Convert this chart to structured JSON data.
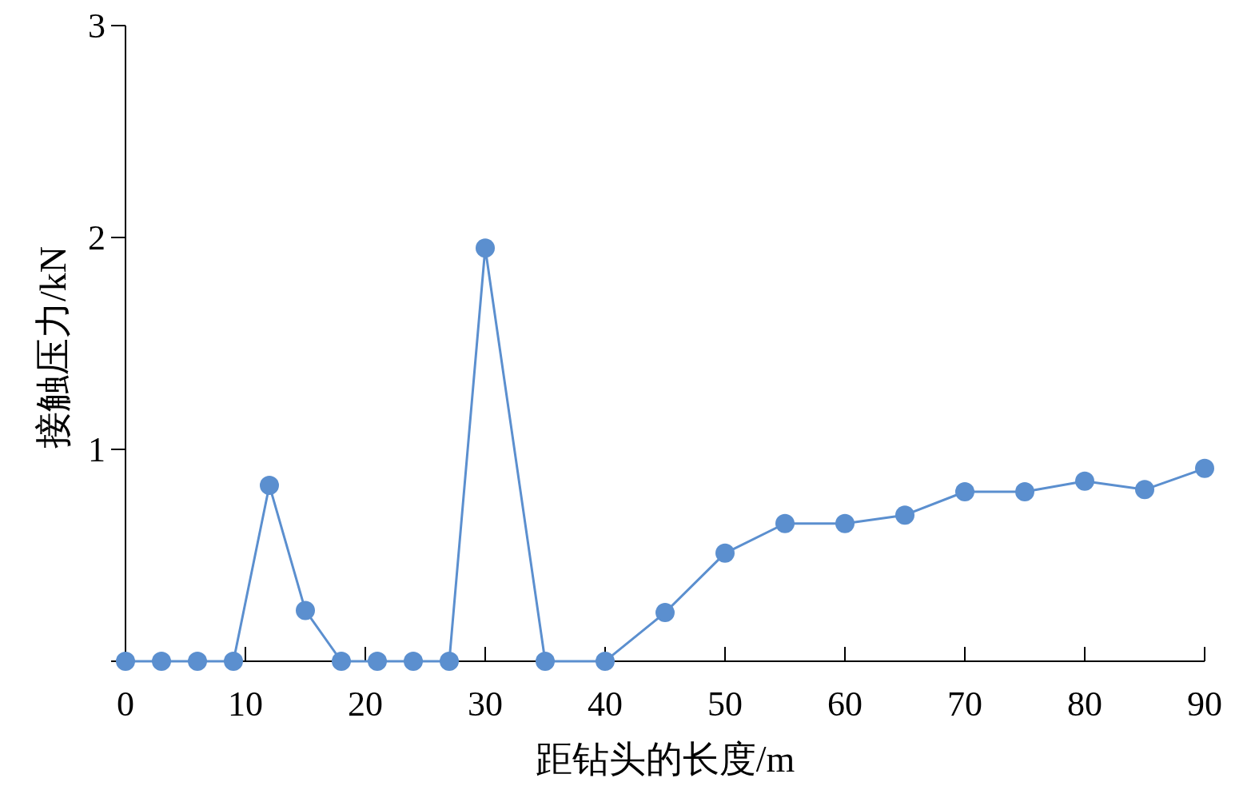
{
  "chart_data": {
    "type": "line",
    "xlabel": "距钻头的长度/m",
    "ylabel": "接触压力/kN",
    "x": [
      0,
      3,
      6,
      9,
      12,
      15,
      18,
      21,
      24,
      27,
      30,
      35,
      40,
      45,
      50,
      55,
      60,
      65,
      70,
      75,
      80,
      85,
      90
    ],
    "series": [
      {
        "color": "#5b8fcf",
        "values": [
          0,
          0,
          0,
          0,
          0.83,
          0.24,
          0,
          0,
          0,
          0,
          1.95,
          0,
          0,
          0.23,
          0.51,
          0.65,
          0.65,
          0.69,
          0.8,
          0.8,
          0.85,
          0.81,
          0.91
        ]
      }
    ],
    "xlim": [
      0,
      90
    ],
    "xticks": [
      0,
      10,
      20,
      30,
      40,
      50,
      60,
      70,
      80,
      90
    ],
    "ylim": [
      0,
      3
    ],
    "yticks": [
      {
        "value": 0,
        "label": null
      },
      1,
      2,
      3
    ],
    "marker": "circle",
    "line_style": "solid",
    "grid": false
  }
}
